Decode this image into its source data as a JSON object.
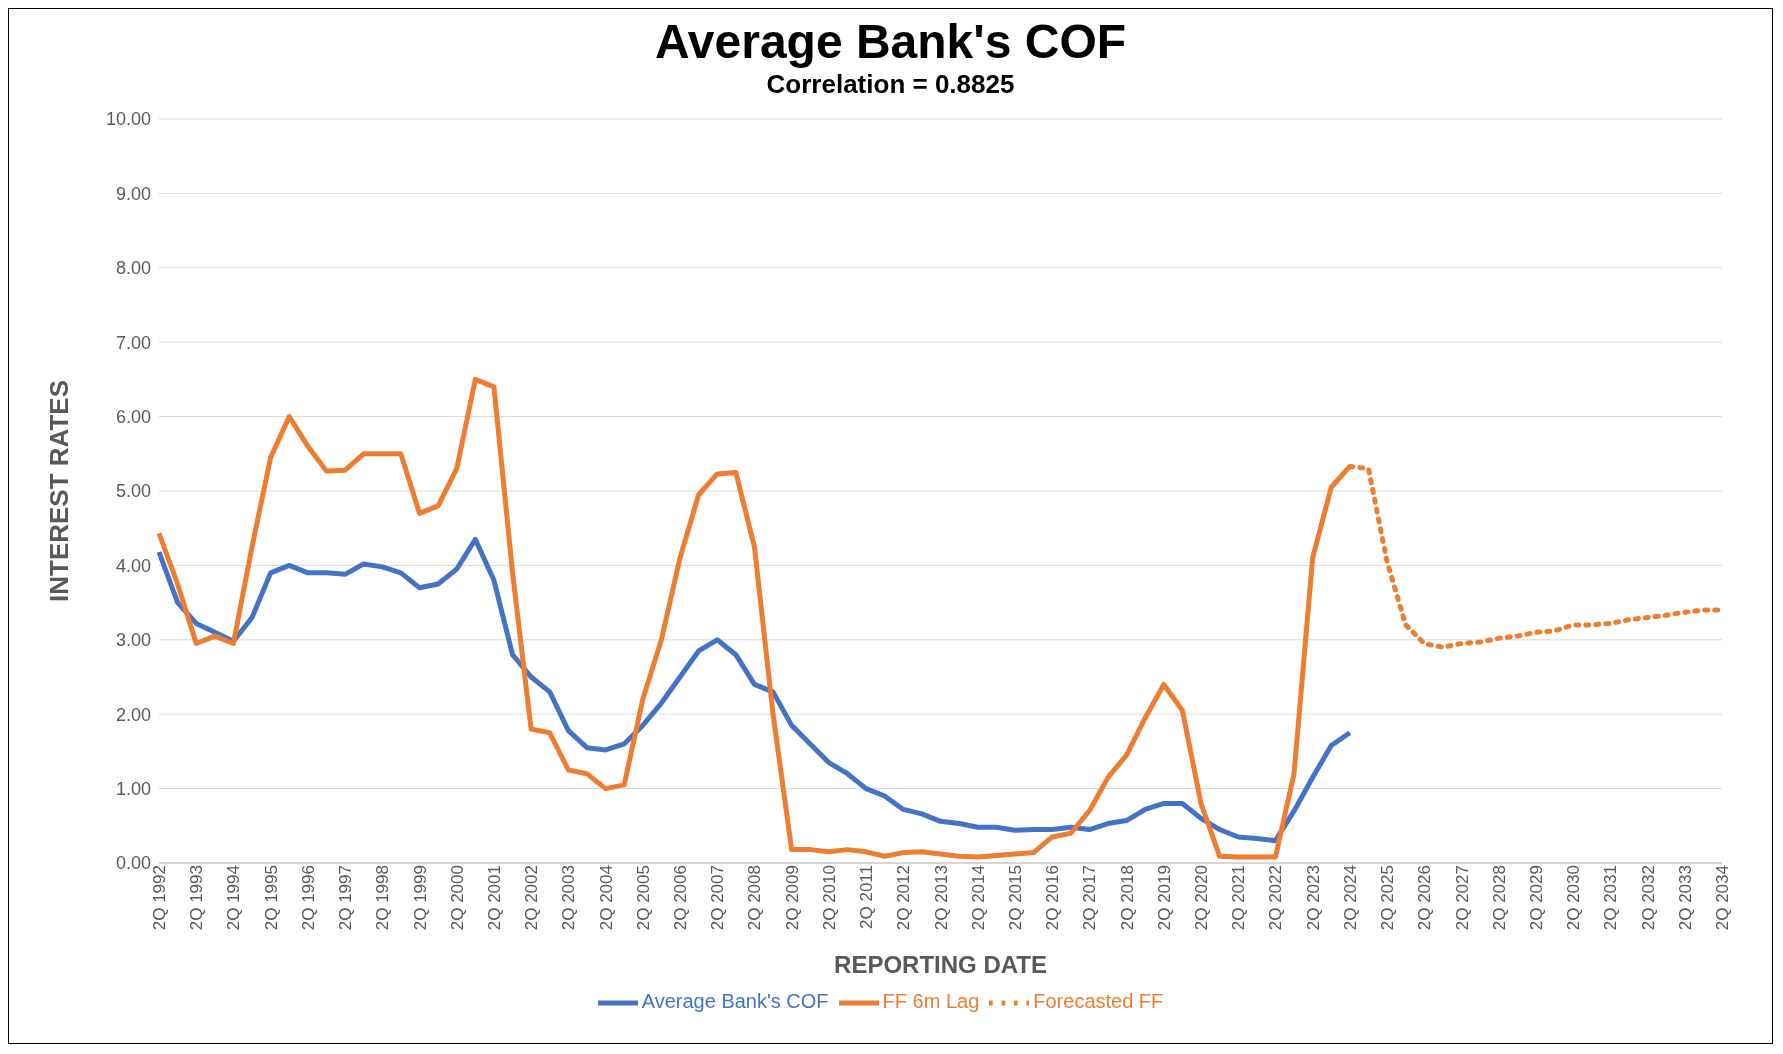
{
  "chart_data": {
    "type": "line",
    "title": "Average Bank's COF",
    "subtitle": "Correlation  =  0.8825",
    "xlabel": "REPORTING DATE",
    "ylabel": "INTEREST RATES",
    "categories": [
      "2Q 1992",
      null,
      "2Q 1993",
      null,
      "2Q 1994",
      null,
      "2Q 1995",
      null,
      "2Q 1996",
      null,
      "2Q 1997",
      null,
      "2Q 1998",
      null,
      "2Q 1999",
      null,
      "2Q 2000",
      null,
      "2Q 2001",
      null,
      "2Q 2002",
      null,
      "2Q 2003",
      null,
      "2Q 2004",
      null,
      "2Q 2005",
      null,
      "2Q 2006",
      null,
      "2Q 2007",
      null,
      "2Q 2008",
      null,
      "2Q 2009",
      null,
      "2Q 2010",
      null,
      "2Q 2011",
      null,
      "2Q 2012",
      null,
      "2Q 2013",
      null,
      "2Q 2014",
      null,
      "2Q 2015",
      null,
      "2Q 2016",
      null,
      "2Q 2017",
      null,
      "2Q 2018",
      null,
      "2Q 2019",
      null,
      "2Q 2020",
      null,
      "2Q 2021",
      null,
      "2Q 2022",
      null,
      "2Q 2023",
      null,
      "2Q 2024",
      null,
      "2Q 2025",
      null,
      "2Q 2026",
      null,
      "2Q 2027",
      null,
      "2Q 2028",
      null,
      "2Q 2029",
      null,
      "2Q 2030",
      null,
      "2Q 2031",
      null,
      "2Q 2032",
      null,
      "2Q 2033",
      null,
      "2Q 2034"
    ],
    "series": [
      {
        "name": "Average Bank's COF",
        "color": "#4472c4",
        "line_style": "solid",
        "values": [
          4.18,
          3.5,
          3.22,
          3.1,
          2.98,
          3.3,
          3.9,
          4.0,
          3.9,
          3.9,
          3.88,
          4.02,
          3.98,
          3.9,
          3.7,
          3.75,
          3.95,
          4.35,
          3.8,
          2.8,
          2.5,
          2.3,
          1.78,
          1.55,
          1.52,
          1.6,
          1.85,
          2.15,
          2.5,
          2.85,
          3.0,
          2.8,
          2.4,
          2.3,
          1.85,
          1.6,
          1.35,
          1.2,
          1.0,
          0.9,
          0.72,
          0.66,
          0.56,
          0.53,
          0.48,
          0.48,
          0.44,
          0.45,
          0.45,
          0.48,
          0.45,
          0.53,
          0.57,
          0.72,
          0.8,
          0.8,
          0.6,
          0.45,
          0.35,
          0.33,
          0.3,
          0.7,
          1.15,
          1.58,
          1.75,
          null,
          null,
          null,
          null,
          null,
          null,
          null,
          null,
          null,
          null,
          null,
          null,
          null,
          null,
          null,
          null,
          null,
          null,
          null,
          null
        ]
      },
      {
        "name": "FF 6m Lag",
        "color": "#ed7d31",
        "line_style": "solid",
        "values": [
          4.43,
          3.75,
          2.95,
          3.05,
          2.95,
          4.25,
          5.45,
          6.0,
          5.6,
          5.27,
          5.28,
          5.5,
          5.5,
          5.5,
          4.7,
          4.8,
          5.3,
          6.5,
          6.4,
          3.9,
          1.8,
          1.75,
          1.25,
          1.2,
          1.0,
          1.05,
          2.2,
          3.0,
          4.1,
          4.95,
          5.23,
          5.25,
          4.25,
          2.0,
          0.18,
          0.18,
          0.15,
          0.18,
          0.15,
          0.09,
          0.14,
          0.15,
          0.12,
          0.09,
          0.08,
          0.1,
          0.12,
          0.14,
          0.35,
          0.4,
          0.7,
          1.15,
          1.45,
          1.95,
          2.4,
          2.05,
          0.8,
          0.09,
          0.08,
          0.08,
          0.08,
          1.2,
          4.1,
          5.05,
          5.33,
          null,
          null,
          null,
          null,
          null,
          null,
          null,
          null,
          null,
          null,
          null,
          null,
          null,
          null,
          null,
          null,
          null,
          null,
          null,
          null
        ]
      },
      {
        "name": "Forecasted FF",
        "color": "#ed7d31",
        "line_style": "dotted",
        "values": [
          null,
          null,
          null,
          null,
          null,
          null,
          null,
          null,
          null,
          null,
          null,
          null,
          null,
          null,
          null,
          null,
          null,
          null,
          null,
          null,
          null,
          null,
          null,
          null,
          null,
          null,
          null,
          null,
          null,
          null,
          null,
          null,
          null,
          null,
          null,
          null,
          null,
          null,
          null,
          null,
          null,
          null,
          null,
          null,
          null,
          null,
          null,
          null,
          null,
          null,
          null,
          null,
          null,
          null,
          null,
          null,
          null,
          null,
          null,
          null,
          null,
          null,
          null,
          null,
          5.33,
          5.3,
          4.05,
          3.2,
          2.95,
          2.9,
          2.95,
          2.97,
          3.02,
          3.05,
          3.1,
          3.12,
          3.2,
          3.2,
          3.22,
          3.27,
          3.3,
          3.33,
          3.37,
          3.4,
          3.4
        ]
      }
    ],
    "ylim": [
      0,
      10
    ],
    "yticks": [
      {
        "value": 0,
        "label": "0.00"
      },
      {
        "value": 1,
        "label": "1.00"
      },
      {
        "value": 2,
        "label": "2.00"
      },
      {
        "value": 3,
        "label": "3.00"
      },
      {
        "value": 4,
        "label": "4.00"
      },
      {
        "value": 5,
        "label": "5.00"
      },
      {
        "value": 6,
        "label": "6.00"
      },
      {
        "value": 7,
        "label": "7.00"
      },
      {
        "value": 8,
        "label": "8.00"
      },
      {
        "value": 9,
        "label": "9.00"
      },
      {
        "value": 10,
        "label": "10.00"
      }
    ],
    "grid": "y",
    "legend": "bottom",
    "marker": "none"
  }
}
